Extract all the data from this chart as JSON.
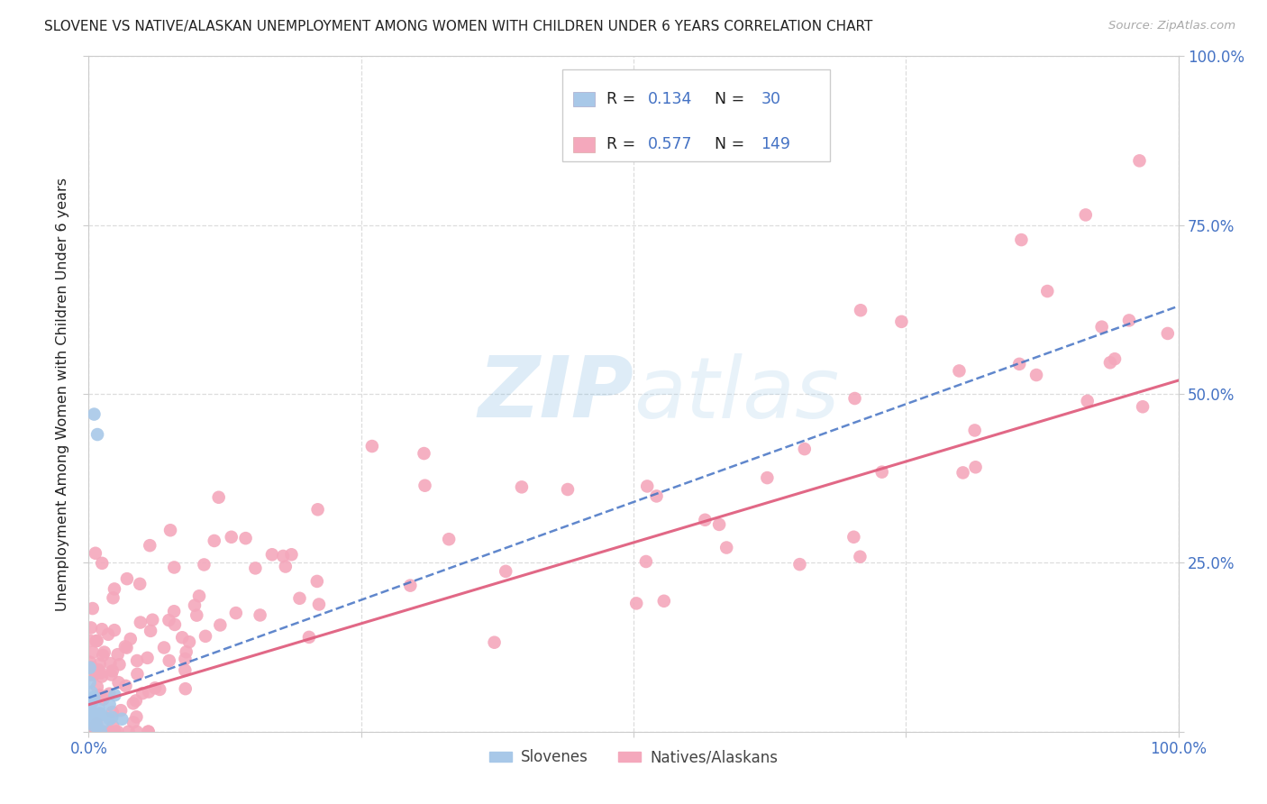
{
  "title": "SLOVENE VS NATIVE/ALASKAN UNEMPLOYMENT AMONG WOMEN WITH CHILDREN UNDER 6 YEARS CORRELATION CHART",
  "source": "Source: ZipAtlas.com",
  "ylabel": "Unemployment Among Women with Children Under 6 years",
  "xlim": [
    0,
    1
  ],
  "ylim": [
    0,
    1
  ],
  "background_color": "#ffffff",
  "grid_color": "#dddddd",
  "legend_R_slovene": "0.134",
  "legend_N_slovene": "30",
  "legend_R_native": "0.577",
  "legend_N_native": "149",
  "slovene_color": "#a8c8e8",
  "native_color": "#f4a8bc",
  "slovene_line_color": "#4472c4",
  "native_line_color": "#e06080",
  "label_color": "#4472c4",
  "text_color": "#222222",
  "source_color": "#aaaaaa",
  "watermark_color": "#ccdff0",
  "watermark_alpha": 0.5
}
